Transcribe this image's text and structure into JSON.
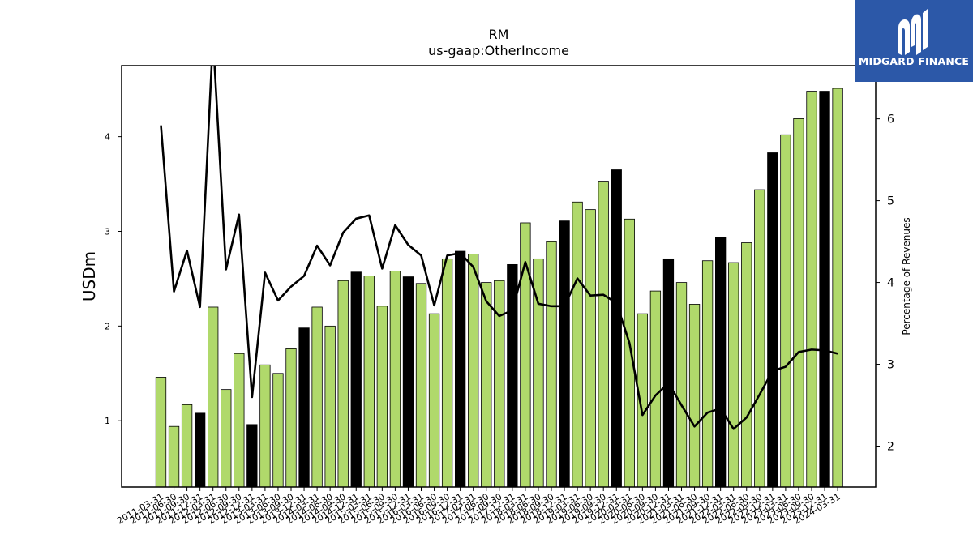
{
  "logo": {
    "text": "MIDGARD FINANCE",
    "bg_color": "#2c58a8"
  },
  "chart_data": {
    "type": "bar",
    "title": "RM",
    "subtitle": "us-gaap:OtherIncome",
    "ylabel": "USDm",
    "y2label": "Percentage of Revenues",
    "ylim": [
      0.3,
      4.75
    ],
    "y2lim": [
      1.5,
      6.65
    ],
    "yticks": [
      1,
      2,
      3,
      4
    ],
    "y2ticks": [
      2,
      3,
      4,
      5,
      6
    ],
    "grid": false,
    "bar_color": "#b0d96b",
    "highlight_color": "#000000",
    "line_color": "#000000",
    "categories": [
      "2011-03-31",
      "2011-06-30",
      "2011-09-30",
      "2011-12-31",
      "2012-03-31",
      "2012-06-30",
      "2012-09-30",
      "2012-12-31",
      "2013-03-31",
      "2013-06-30",
      "2013-09-30",
      "2013-12-31",
      "2014-03-31",
      "2014-06-30",
      "2014-09-30",
      "2014-12-31",
      "2015-03-31",
      "2015-06-30",
      "2015-09-30",
      "2015-12-31",
      "2016-03-31",
      "2016-06-30",
      "2016-09-30",
      "2016-12-31",
      "2017-03-31",
      "2017-06-30",
      "2017-09-30",
      "2017-12-31",
      "2018-03-31",
      "2018-06-30",
      "2018-09-30",
      "2018-12-31",
      "2019-03-31",
      "2019-06-30",
      "2019-09-30",
      "2019-12-31",
      "2020-03-31",
      "2020-06-30",
      "2020-09-30",
      "2020-12-31",
      "2021-03-31",
      "2021-06-30",
      "2021-09-30",
      "2021-12-31",
      "2022-03-31",
      "2022-06-30",
      "2022-09-30",
      "2022-12-31",
      "2023-03-31",
      "2023-06-30",
      "2023-09-30",
      "2023-12-31",
      "2024-03-31"
    ],
    "series": [
      {
        "type": "bar",
        "values": [
          1.46,
          0.94,
          1.17,
          1.08,
          2.2,
          1.33,
          1.71,
          0.96,
          1.59,
          1.5,
          1.76,
          1.98,
          2.2,
          2.0,
          2.48,
          2.57,
          2.53,
          2.21,
          2.58,
          2.52,
          2.45,
          2.13,
          2.71,
          2.79,
          2.76,
          2.46,
          2.48,
          2.65,
          3.09,
          2.71,
          2.89,
          3.11,
          3.31,
          3.23,
          3.53,
          3.65,
          3.13,
          2.13,
          2.37,
          2.71,
          2.46,
          2.23,
          2.69,
          2.94,
          2.67,
          2.88,
          3.44,
          3.83,
          4.02,
          4.19,
          4.48,
          4.48,
          4.51
        ],
        "highlight": [
          false,
          false,
          false,
          true,
          false,
          false,
          false,
          true,
          false,
          false,
          false,
          true,
          false,
          false,
          false,
          true,
          false,
          false,
          false,
          true,
          false,
          false,
          false,
          true,
          false,
          false,
          false,
          true,
          false,
          false,
          false,
          true,
          false,
          false,
          false,
          true,
          false,
          false,
          false,
          true,
          false,
          false,
          false,
          true,
          false,
          false,
          false,
          true,
          false,
          false,
          false,
          true,
          false
        ]
      },
      {
        "type": "line",
        "axis": "right",
        "values": [
          5.92,
          3.89,
          4.39,
          3.7,
          7.0,
          4.16,
          4.83,
          2.6,
          4.12,
          3.78,
          3.95,
          4.08,
          4.45,
          4.21,
          4.61,
          4.78,
          4.82,
          4.17,
          4.7,
          4.46,
          4.33,
          3.72,
          4.33,
          4.36,
          4.19,
          3.77,
          3.59,
          3.66,
          4.25,
          3.74,
          3.71,
          3.71,
          4.05,
          3.84,
          3.85,
          3.75,
          3.26,
          2.38,
          2.62,
          2.77,
          2.5,
          2.24,
          2.41,
          2.46,
          2.21,
          2.35,
          2.63,
          2.92,
          2.97,
          3.15,
          3.18,
          3.17,
          3.13
        ]
      }
    ]
  }
}
